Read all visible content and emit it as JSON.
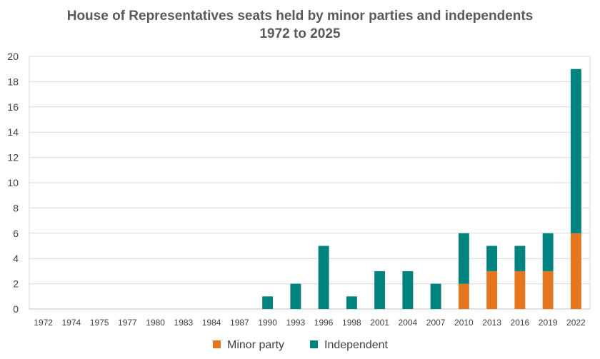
{
  "chart_data": {
    "type": "bar",
    "stacked": true,
    "title_line1": "House of Representatives seats held by minor parties and independents",
    "title_line2": "1972 to 2025",
    "xlabel": "",
    "ylabel": "",
    "ylim": [
      0,
      20
    ],
    "yticks": [
      "0",
      "2",
      "4",
      "6",
      "8",
      "10",
      "12",
      "14",
      "16",
      "18",
      "20"
    ],
    "grid": true,
    "legend_position": "bottom",
    "categories": [
      "1972",
      "1974",
      "1975",
      "1977",
      "1980",
      "1983",
      "1984",
      "1987",
      "1990",
      "1993",
      "1996",
      "1998",
      "2001",
      "2004",
      "2007",
      "2010",
      "2013",
      "2016",
      "2019",
      "2022"
    ],
    "series": [
      {
        "name": "Minor party",
        "color": "#e4761f",
        "values": [
          0,
          0,
          0,
          0,
          0,
          0,
          0,
          0,
          0,
          0,
          0,
          0,
          0,
          0,
          0,
          2,
          3,
          3,
          3,
          6
        ]
      },
      {
        "name": "Independent",
        "color": "#00827f",
        "values": [
          0,
          0,
          0,
          0,
          0,
          0,
          0,
          0,
          1,
          2,
          5,
          1,
          3,
          3,
          2,
          4,
          2,
          2,
          3,
          13
        ]
      }
    ]
  }
}
